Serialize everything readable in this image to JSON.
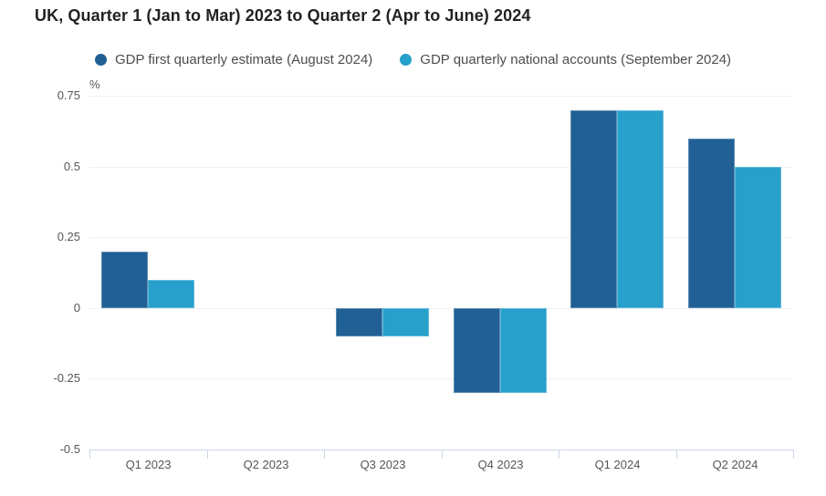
{
  "title": "UK, Quarter 1 (Jan to Mar) 2023 to Quarter 2 (Apr to June) 2024",
  "legend": [
    {
      "label": "GDP first quarterly estimate (August 2024)",
      "color": "#206095"
    },
    {
      "label": "GDP quarterly national accounts (September 2024)",
      "color": "#27a0cc"
    }
  ],
  "colors": {
    "series_dark_blue": "#206095",
    "series_light_blue": "#27a0cc",
    "gridline": "#f0f0f0",
    "axis_line": "#ccd6eb",
    "axis_text": "#555555",
    "title_text": "#222222"
  },
  "chart_data": {
    "type": "bar",
    "title": "UK, Quarter 1 (Jan to Mar) 2023 to Quarter 2 (Apr to June) 2024",
    "unit_label": "%",
    "categories": [
      "Q1 2023",
      "Q2 2023",
      "Q3 2023",
      "Q4 2023",
      "Q1 2024",
      "Q2 2024"
    ],
    "series": [
      {
        "name": "GDP first quarterly estimate (August 2024)",
        "color": "#206095",
        "values": [
          0.2,
          0,
          -0.1,
          -0.3,
          0.7,
          0.6
        ]
      },
      {
        "name": "GDP quarterly national accounts (September 2024)",
        "color": "#27a0cc",
        "values": [
          0.1,
          0,
          -0.1,
          -0.3,
          0.7,
          0.5
        ]
      }
    ],
    "yticks": [
      0.75,
      0.5,
      0.25,
      0,
      -0.25,
      -0.5
    ],
    "ytick_labels": [
      "0.75",
      "0.5",
      "0.25",
      "0",
      "-0.25",
      "-0.5"
    ],
    "ylim": [
      -0.5,
      0.75
    ],
    "xlabel": "",
    "ylabel": "%",
    "grid": true,
    "legend_position": "top"
  }
}
